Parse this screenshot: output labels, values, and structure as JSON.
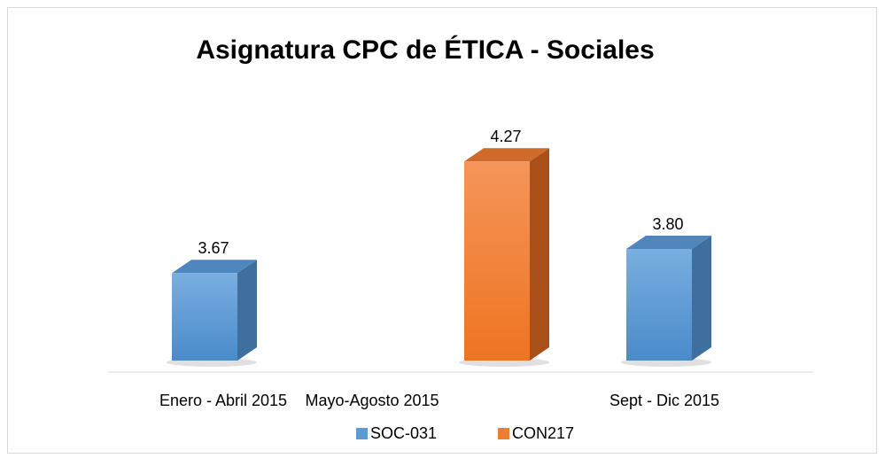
{
  "chart_data": {
    "type": "bar3d",
    "title": "Asignatura CPC de ÉTICA - Sociales",
    "categories": [
      "Enero - Abril 2015",
      "Mayo-Agosto 2015",
      "Sept - Dic 2015"
    ],
    "series": [
      {
        "name": "SOC-031",
        "color": "#5b9bd5",
        "values": [
          3.67,
          null,
          3.8
        ],
        "value_labels": [
          "3.67",
          null,
          "3.80"
        ]
      },
      {
        "name": "CON217",
        "color": "#ed7d31",
        "values": [
          null,
          4.27,
          null
        ],
        "value_labels": [
          null,
          "4.27",
          null
        ]
      }
    ],
    "ylim": [
      3.2,
      4.4
    ]
  }
}
